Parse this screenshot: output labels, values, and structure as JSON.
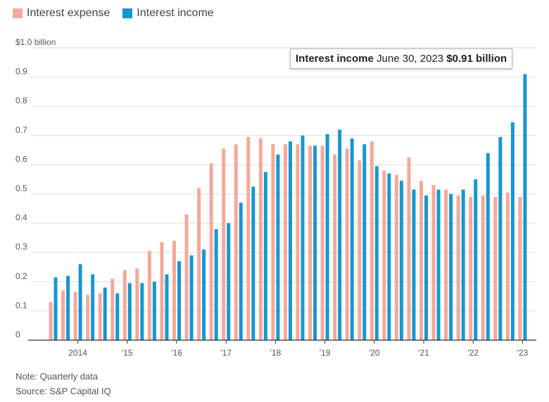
{
  "legend": {
    "expense_label": "Interest expense",
    "income_label": "Interest income"
  },
  "colors": {
    "expense": "#f4a99a",
    "income": "#1796d2",
    "grid": "#dddddd",
    "axis": "#333333"
  },
  "tooltip": {
    "series": "Interest income",
    "date": "June 30, 2023",
    "value": "$0.91 billion"
  },
  "footer": {
    "note": "Note: Quarterly data",
    "source": "Source: S&P Capital IQ"
  },
  "chart_data": {
    "type": "bar",
    "title": "",
    "xlabel": "",
    "ylabel": "",
    "ylim": [
      0,
      1.0
    ],
    "yticks": [
      {
        "value": 0,
        "label": "0"
      },
      {
        "value": 0.1,
        "label": "0.1"
      },
      {
        "value": 0.2,
        "label": "0.2"
      },
      {
        "value": 0.3,
        "label": "0.3"
      },
      {
        "value": 0.4,
        "label": "0.4"
      },
      {
        "value": 0.5,
        "label": "0.5"
      },
      {
        "value": 0.6,
        "label": "0.6"
      },
      {
        "value": 0.7,
        "label": "0.7"
      },
      {
        "value": 0.8,
        "label": "0.8"
      },
      {
        "value": 0.9,
        "label": "0.9"
      },
      {
        "value": 1.0,
        "label": "$1.0 billion"
      }
    ],
    "xticks": [
      {
        "label": "2014",
        "category": "2014-Q2"
      },
      {
        "label": "'15",
        "category": "2015-Q2"
      },
      {
        "label": "'16",
        "category": "2016-Q2"
      },
      {
        "label": "'17",
        "category": "2017-Q2"
      },
      {
        "label": "'18",
        "category": "2018-Q2"
      },
      {
        "label": "'19",
        "category": "2019-Q2"
      },
      {
        "label": "'20",
        "category": "2020-Q2"
      },
      {
        "label": "'21",
        "category": "2021-Q2"
      },
      {
        "label": "'22",
        "category": "2022-Q2"
      },
      {
        "label": "'23",
        "category": "2023-Q2"
      }
    ],
    "categories": [
      "2013-Q4",
      "2014-Q1",
      "2014-Q2",
      "2014-Q3",
      "2014-Q4",
      "2015-Q1",
      "2015-Q2",
      "2015-Q3",
      "2015-Q4",
      "2016-Q1",
      "2016-Q2",
      "2016-Q3",
      "2016-Q4",
      "2017-Q1",
      "2017-Q2",
      "2017-Q3",
      "2017-Q4",
      "2018-Q1",
      "2018-Q2",
      "2018-Q3",
      "2018-Q4",
      "2019-Q1",
      "2019-Q2",
      "2019-Q3",
      "2019-Q4",
      "2020-Q1",
      "2020-Q2",
      "2020-Q3",
      "2020-Q4",
      "2021-Q1",
      "2021-Q2",
      "2021-Q3",
      "2021-Q4",
      "2022-Q1",
      "2022-Q2",
      "2022-Q3",
      "2022-Q4",
      "2023-Q1",
      "2023-Q2"
    ],
    "series": [
      {
        "name": "Interest expense",
        "values": [
          0.13,
          0.17,
          0.165,
          0.155,
          0.16,
          0.21,
          0.24,
          0.245,
          0.305,
          0.335,
          0.34,
          0.43,
          0.52,
          0.605,
          0.655,
          0.67,
          0.695,
          0.69,
          0.67,
          0.67,
          0.67,
          0.665,
          0.665,
          0.635,
          0.655,
          0.615,
          0.68,
          0.58,
          0.565,
          0.625,
          0.545,
          0.53,
          0.515,
          0.495,
          0.49,
          0.495,
          0.49,
          0.505,
          0.49
        ]
      },
      {
        "name": "Interest income",
        "values": [
          0.215,
          0.22,
          0.26,
          0.225,
          0.18,
          0.16,
          0.195,
          0.195,
          0.2,
          0.225,
          0.27,
          0.29,
          0.31,
          0.38,
          0.4,
          0.47,
          0.525,
          0.575,
          0.635,
          0.68,
          0.7,
          0.665,
          0.705,
          0.72,
          0.69,
          0.67,
          0.595,
          0.57,
          0.545,
          0.515,
          0.495,
          0.515,
          0.5,
          0.515,
          0.55,
          0.64,
          0.695,
          0.745,
          0.91
        ]
      }
    ]
  }
}
